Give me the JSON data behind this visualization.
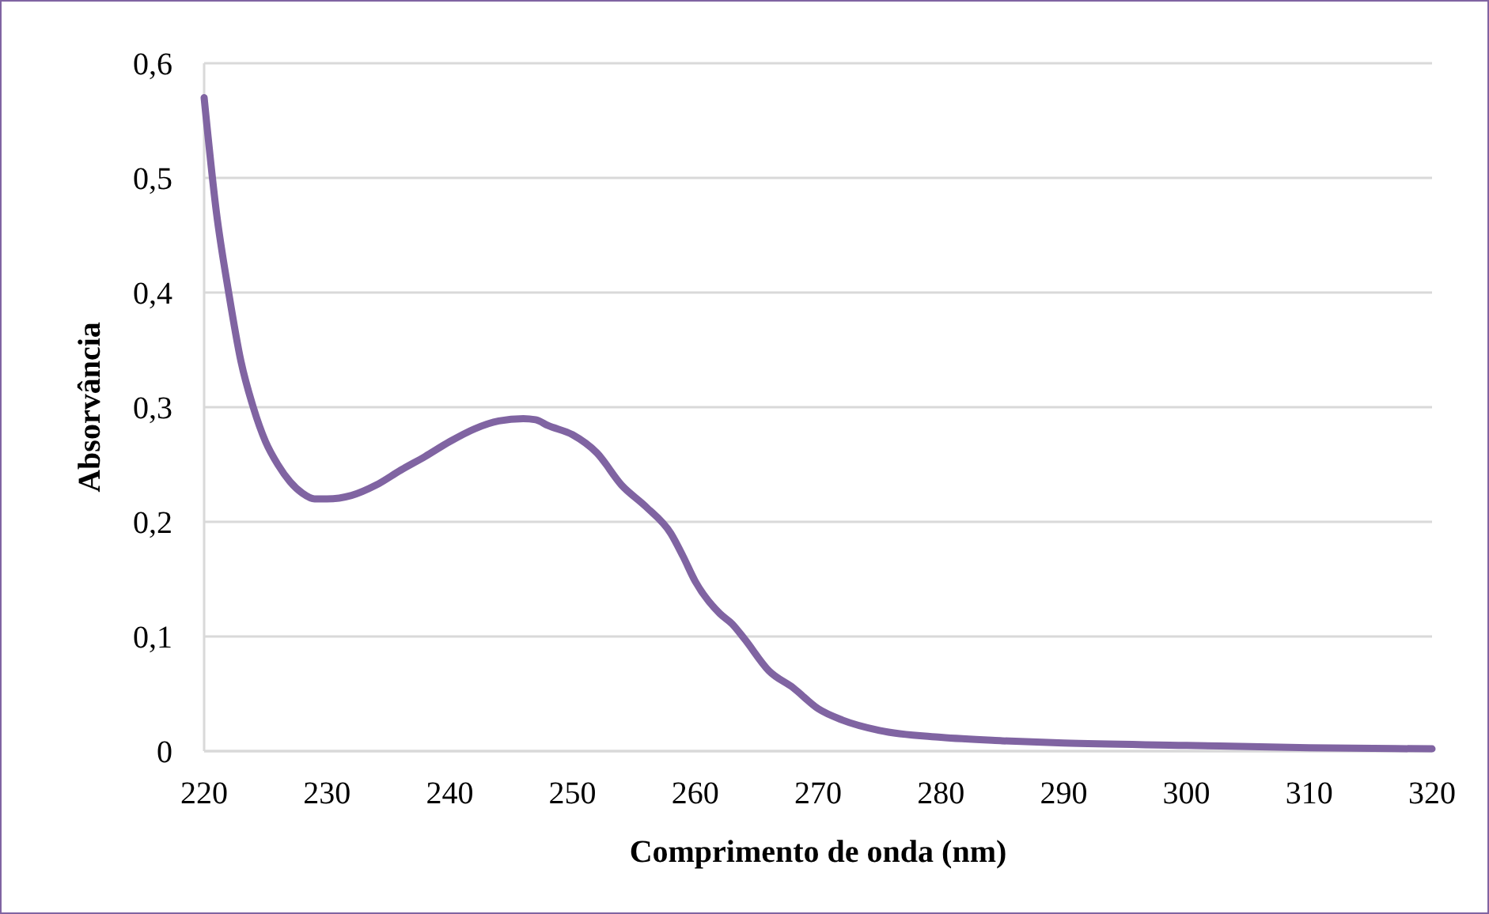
{
  "chart_data": {
    "type": "line",
    "xlabel": "Comprimento de onda (nm)",
    "ylabel": "Absorvância",
    "x": [
      220,
      221,
      222,
      223,
      224,
      225,
      226,
      227,
      228,
      229,
      230,
      232,
      234,
      236,
      238,
      240,
      242,
      244,
      246,
      247,
      248,
      250,
      252,
      254,
      256,
      258,
      259,
      260,
      262,
      263,
      264,
      266,
      268,
      270,
      272,
      275,
      280,
      285,
      290,
      300,
      310,
      320
    ],
    "series": [
      {
        "color": "#8064a2",
        "values": [
          0.57,
          0.47,
          0.4,
          0.34,
          0.3,
          0.27,
          0.25,
          0.235,
          0.225,
          0.22,
          0.22,
          0.223,
          0.232,
          0.245,
          0.257,
          0.27,
          0.281,
          0.288,
          0.29,
          0.289,
          0.284,
          0.276,
          0.26,
          0.232,
          0.213,
          0.19,
          0.17,
          0.148,
          0.12,
          0.111,
          0.098,
          0.07,
          0.055,
          0.037,
          0.027,
          0.018,
          0.012,
          0.009,
          0.007,
          0.005,
          0.003,
          0.002
        ]
      }
    ],
    "xlim": [
      220,
      320
    ],
    "xticks": [
      220,
      230,
      240,
      250,
      260,
      270,
      280,
      290,
      300,
      310,
      320
    ],
    "ylim": [
      0,
      0.6
    ],
    "yticks": [
      {
        "value": 0,
        "label": "0"
      },
      {
        "value": 0.1,
        "label": "0,1"
      },
      {
        "value": 0.2,
        "label": "0,2"
      },
      {
        "value": 0.3,
        "label": "0,3"
      },
      {
        "value": 0.4,
        "label": "0,4"
      },
      {
        "value": 0.5,
        "label": "0,5"
      },
      {
        "value": 0.6,
        "label": "0,6"
      }
    ],
    "grid": "y"
  }
}
